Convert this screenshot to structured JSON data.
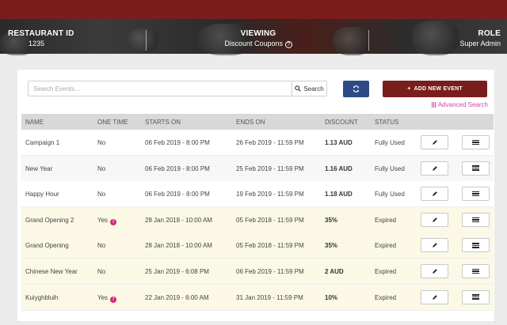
{
  "header": {
    "restaurant_label": "RESTAURANT ID",
    "restaurant_value": "1235",
    "viewing_label": "VIEWING",
    "viewing_value": "Discount Coupons",
    "role_label": "ROLE",
    "role_value": "Super Admin",
    "help_icon": "question-circle-icon"
  },
  "toolbar": {
    "search_placeholder": "Search Events...",
    "search_label": "Search",
    "add_label": "ADD NEW EVENT",
    "advanced_label": "Advanced Search",
    "accent_color": "#7a1d1d",
    "refresh_color": "#2b4a86"
  },
  "table": {
    "headers": [
      "NAME",
      "ONE TIME",
      "STARTS ON",
      "ENDS ON",
      "DISCOUNT",
      "STATUS"
    ],
    "rows": [
      {
        "name": "Campaign 1",
        "one_time": "No",
        "starts": "06 Feb 2019 - 8:00 PM",
        "ends": "26 Feb 2019 - 11:59 PM",
        "discount": "1.13 AUD",
        "status": "Fully Used",
        "warn": false,
        "highlight": false
      },
      {
        "name": "New Year",
        "one_time": "No",
        "starts": "06 Feb 2019 - 8:00 PM",
        "ends": "25 Feb 2019 - 11:59 PM",
        "discount": "1.16 AUD",
        "status": "Fully Used",
        "warn": false,
        "highlight": false
      },
      {
        "name": "Happy Hour",
        "one_time": "No",
        "starts": "06 Feb 2019 - 8:00 PM",
        "ends": "19 Feb 2019 - 11:59 PM",
        "discount": "1.18 AUD",
        "status": "Fully Used",
        "warn": false,
        "highlight": false
      },
      {
        "name": "Grand Opening 2",
        "one_time": "Yes",
        "starts": "28 Jan 2018 - 10:00 AM",
        "ends": "05 Feb 2018 - 11:59 PM",
        "discount": "35%",
        "status": "Expired",
        "warn": true,
        "highlight": true
      },
      {
        "name": "Grand Opening",
        "one_time": "No",
        "starts": "28 Jan 2018 - 10:00 AM",
        "ends": "05 Feb 2018 - 11:59 PM",
        "discount": "35%",
        "status": "Expired",
        "warn": false,
        "highlight": true
      },
      {
        "name": "Chinese New Year",
        "one_time": "No",
        "starts": "25 Jan 2019 - 6:08 PM",
        "ends": "06 Feb 2019 - 11:59 PM",
        "discount": "2 AUD",
        "status": "Expired",
        "warn": false,
        "highlight": true
      },
      {
        "name": "Kuiyghbluih",
        "one_time": "Yes",
        "starts": "22 Jan 2019 - 6:00 AM",
        "ends": "31 Jan 2019 - 11:59 PM",
        "discount": "10%",
        "status": "Expired",
        "warn": true,
        "highlight": true
      }
    ],
    "highlight_color": "#fbf8e5",
    "alt_color": "#f7f7f7"
  }
}
